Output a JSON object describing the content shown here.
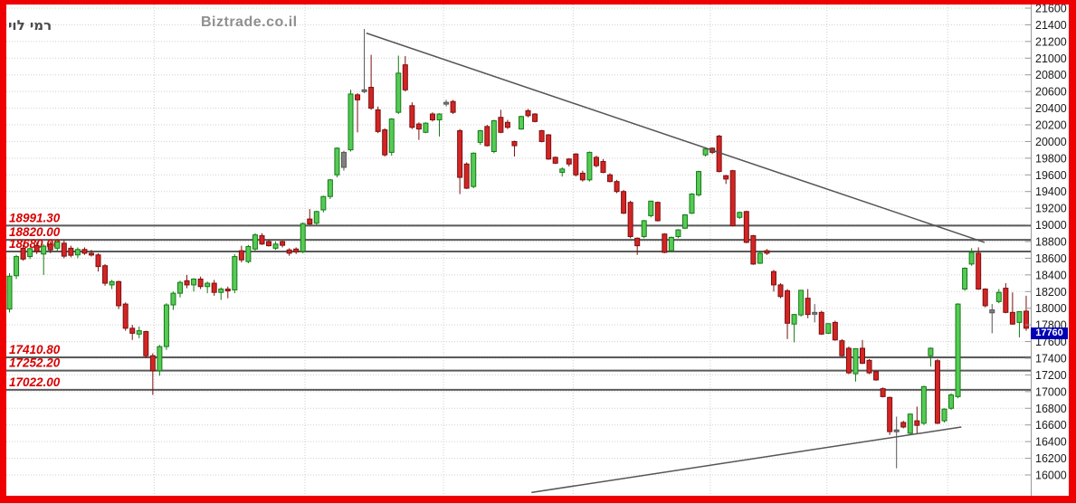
{
  "header": {
    "stock_name": "רמי לוי",
    "watermark": "Biztrade.co.il"
  },
  "colors": {
    "frame_border": "#ee0000",
    "candle_up_fill": "#55cb55",
    "candle_up_stroke": "#157a15",
    "candle_down_fill": "#d42424",
    "candle_down_stroke": "#7a1010",
    "candle_neutral": "#808080",
    "level_line": "#5a5a5a",
    "level_label": "#d80000",
    "trendline": "#555555",
    "gridline": "#cfcfcf",
    "axis_text": "#1a1a1a",
    "badge_bg": "#0000b4",
    "badge_text": "#ffffff"
  },
  "chart_data": {
    "type": "candlestick",
    "title": "רמי לוי",
    "watermark": "Biztrade.co.il",
    "x_axis_labels": [],
    "y_axis": {
      "side": "right",
      "min": 16000,
      "max": 21600,
      "step": 200
    },
    "last_price": 17760,
    "last_price_label": "17760",
    "levels": [
      {
        "label": "18991.30",
        "value": 18991.3
      },
      {
        "label": "18820.00",
        "value": 18820.0
      },
      {
        "label": "18680.00",
        "value": 18680.0
      },
      {
        "label": "17410.80",
        "value": 17410.8
      },
      {
        "label": "17252.20",
        "value": 17252.2
      },
      {
        "label": "17022.00",
        "value": 17022.0
      }
    ],
    "trendlines": [
      {
        "name": "descending-resistance",
        "i1": 52.3,
        "p1": 21300,
        "i2": 142.9,
        "p2": 18790
      },
      {
        "name": "ascending-support",
        "i1": 76.5,
        "p1": 15790,
        "i2": 139.5,
        "p2": 16575
      }
    ],
    "x_gridline_indices": [
      21.2,
      43.3,
      63.6,
      82.6,
      102.7,
      119.8,
      137.5
    ],
    "candles": [
      [
        17990,
        18420,
        17950,
        18385
      ],
      [
        18390,
        18640,
        18350,
        18620
      ],
      [
        18720,
        18760,
        18570,
        18590
      ],
      [
        18620,
        18730,
        18590,
        18715
      ],
      [
        18750,
        18790,
        18650,
        18680
      ],
      [
        18650,
        18770,
        18400,
        18745
      ],
      [
        18770,
        18800,
        18660,
        18700
      ],
      [
        18720,
        18810,
        18680,
        18795
      ],
      [
        18780,
        18820,
        18600,
        18625
      ],
      [
        18720,
        18750,
        18610,
        18635
      ],
      [
        18640,
        18730,
        18600,
        18705
      ],
      [
        18705,
        18730,
        18640,
        18660
      ],
      [
        18660,
        18700,
        18620,
        18640
      ],
      [
        18640,
        18660,
        18440,
        18500
      ],
      [
        18510,
        18530,
        18270,
        18300
      ],
      [
        18280,
        18340,
        18230,
        18320
      ],
      [
        18320,
        18330,
        17990,
        18030
      ],
      [
        18050,
        18070,
        17730,
        17760
      ],
      [
        17760,
        17800,
        17620,
        17700
      ],
      [
        17690,
        17780,
        17640,
        17730
      ],
      [
        17720,
        17730,
        17400,
        17430
      ],
      [
        17430,
        17460,
        16960,
        17250
      ],
      [
        17250,
        17560,
        17190,
        17540
      ],
      [
        17540,
        18060,
        17500,
        18040
      ],
      [
        18040,
        18200,
        17980,
        18180
      ],
      [
        18180,
        18330,
        18130,
        18310
      ],
      [
        18330,
        18400,
        18240,
        18280
      ],
      [
        18280,
        18360,
        18200,
        18350
      ],
      [
        18350,
        18380,
        18230,
        18260
      ],
      [
        18260,
        18320,
        18180,
        18300
      ],
      [
        18300,
        18340,
        18150,
        18190
      ],
      [
        18190,
        18250,
        18100,
        18230
      ],
      [
        18230,
        18260,
        18120,
        18220
      ],
      [
        18220,
        18650,
        18180,
        18620
      ],
      [
        18690,
        18750,
        18550,
        18580
      ],
      [
        18560,
        18760,
        18540,
        18740
      ],
      [
        18710,
        18900,
        18690,
        18880
      ],
      [
        18870,
        18900,
        18760,
        18770
      ],
      [
        18800,
        18820,
        18740,
        18750
      ],
      [
        18720,
        18800,
        18700,
        18770
      ],
      [
        18800,
        18810,
        18730,
        18755
      ],
      [
        18700,
        18720,
        18630,
        18660
      ],
      [
        18710,
        18730,
        18650,
        18675
      ],
      [
        18680,
        19030,
        18660,
        19015
      ],
      [
        19070,
        19190,
        19000,
        19010
      ],
      [
        19020,
        19170,
        19000,
        19160
      ],
      [
        19180,
        19350,
        19150,
        19340
      ],
      [
        19340,
        19550,
        19310,
        19540
      ],
      [
        19600,
        19930,
        19570,
        19920
      ],
      [
        19690,
        19890,
        19650,
        19870,
        "n"
      ],
      [
        19900,
        20620,
        19880,
        20570
      ],
      [
        20560,
        20580,
        20110,
        20500
      ],
      [
        20620,
        21350,
        20580,
        20620,
        "n"
      ],
      [
        20650,
        21040,
        20380,
        20400
      ],
      [
        20380,
        20420,
        20100,
        20120
      ],
      [
        20140,
        20160,
        19820,
        19840
      ],
      [
        19870,
        20280,
        19830,
        20270
      ],
      [
        20350,
        21030,
        20330,
        20820
      ],
      [
        20920,
        21025,
        20600,
        20620
      ],
      [
        20430,
        20470,
        20150,
        20170
      ],
      [
        20210,
        20230,
        20020,
        20150
      ],
      [
        20110,
        20230,
        20100,
        20220
      ],
      [
        20330,
        20350,
        20240,
        20260
      ],
      [
        20260,
        20340,
        20060,
        20330
      ],
      [
        20470,
        20500,
        20420,
        20470,
        "n"
      ],
      [
        20480,
        20500,
        20330,
        20350
      ],
      [
        20130,
        20150,
        19370,
        19570
      ],
      [
        19730,
        19750,
        19430,
        19440
      ],
      [
        19460,
        19870,
        19440,
        19860
      ],
      [
        19990,
        20140,
        19960,
        20130
      ],
      [
        20180,
        20200,
        19940,
        19950
      ],
      [
        19880,
        20260,
        19860,
        20250
      ],
      [
        20290,
        20380,
        20100,
        20110
      ],
      [
        20230,
        20260,
        20150,
        20170
      ],
      [
        20000,
        20010,
        19820,
        19950
      ],
      [
        20150,
        20310,
        20140,
        20300
      ],
      [
        20370,
        20390,
        20290,
        20310
      ],
      [
        20330,
        20340,
        20230,
        20240
      ],
      [
        20130,
        20140,
        19990,
        20000
      ],
      [
        20080,
        20090,
        19780,
        19790
      ],
      [
        19810,
        19820,
        19730,
        19740
      ],
      [
        19630,
        19690,
        19580,
        19670
      ],
      [
        19790,
        19800,
        19700,
        19730
      ],
      [
        19850,
        19860,
        19580,
        19600
      ],
      [
        19620,
        19650,
        19520,
        19540
      ],
      [
        19540,
        19880,
        19520,
        19870
      ],
      [
        19810,
        19830,
        19690,
        19710
      ],
      [
        19760,
        19790,
        19620,
        19630
      ],
      [
        19600,
        19620,
        19510,
        19520
      ],
      [
        19520,
        19540,
        19380,
        19400
      ],
      [
        19400,
        19420,
        19130,
        19140
      ],
      [
        19270,
        19290,
        18840,
        18860
      ],
      [
        18840,
        18850,
        18640,
        18750
      ],
      [
        18860,
        19060,
        18840,
        19050
      ],
      [
        19110,
        19290,
        19090,
        19285
      ],
      [
        19270,
        19280,
        19040,
        19050
      ],
      [
        18890,
        18900,
        18660,
        18670
      ],
      [
        18690,
        18860,
        18670,
        18850
      ],
      [
        18860,
        18950,
        18840,
        18940
      ],
      [
        18960,
        19130,
        18950,
        19120
      ],
      [
        19140,
        19380,
        19130,
        19370
      ],
      [
        19360,
        19650,
        19340,
        19640
      ],
      [
        19840,
        19920,
        19820,
        19910
      ],
      [
        19920,
        19930,
        19850,
        19870
      ],
      [
        20065,
        20080,
        19630,
        19640
      ],
      [
        19590,
        19600,
        19490,
        19550
      ],
      [
        19650,
        19660,
        18980,
        18990
      ],
      [
        19090,
        19160,
        19070,
        19150
      ],
      [
        19160,
        19170,
        18780,
        18790
      ],
      [
        18870,
        18880,
        18520,
        18530
      ],
      [
        18540,
        18690,
        18530,
        18660
      ],
      [
        18690,
        18710,
        18640,
        18660
      ],
      [
        18440,
        18460,
        18200,
        18280
      ],
      [
        18280,
        18300,
        18120,
        18140
      ],
      [
        18210,
        18230,
        17630,
        17820
      ],
      [
        17810,
        17930,
        17590,
        17925
      ],
      [
        17920,
        18220,
        17900,
        18215
      ],
      [
        18120,
        18230,
        17880,
        17925
      ],
      [
        17950,
        18050,
        17830,
        17945,
        "n"
      ],
      [
        17950,
        17970,
        17680,
        17690
      ],
      [
        17700,
        17820,
        17690,
        17815
      ],
      [
        17830,
        17850,
        17610,
        17620
      ],
      [
        17610,
        17630,
        17420,
        17430
      ],
      [
        17520,
        17540,
        17210,
        17225
      ],
      [
        17215,
        17520,
        17120,
        17515
      ],
      [
        17520,
        17620,
        17330,
        17340
      ],
      [
        17375,
        17390,
        17210,
        17225
      ],
      [
        17240,
        17250,
        17130,
        17140
      ],
      [
        17035,
        17050,
        16930,
        16940
      ],
      [
        16930,
        16940,
        16480,
        16520
      ],
      [
        16540,
        16700,
        16080,
        16540,
        "n"
      ],
      [
        16630,
        16650,
        16560,
        16575
      ],
      [
        16500,
        16740,
        16490,
        16730
      ],
      [
        16650,
        16820,
        16490,
        16595
      ],
      [
        16620,
        17070,
        16600,
        17060
      ],
      [
        17430,
        17530,
        17300,
        17520
      ],
      [
        17370,
        17390,
        16610,
        16620
      ],
      [
        16650,
        16800,
        16630,
        16790
      ],
      [
        16800,
        16980,
        16780,
        16960
      ],
      [
        16940,
        18060,
        16920,
        18050
      ],
      [
        18230,
        18490,
        18210,
        18480
      ],
      [
        18530,
        18720,
        18510,
        18670
      ],
      [
        18660,
        18730,
        18220,
        18230
      ],
      [
        18230,
        18240,
        18010,
        18030
      ],
      [
        17980,
        18050,
        17700,
        17945,
        "n"
      ],
      [
        18080,
        18230,
        18060,
        18190
      ],
      [
        18240,
        18300,
        17940,
        17950
      ],
      [
        17950,
        18190,
        17800,
        17810
      ],
      [
        17830,
        17960,
        17650,
        17960
      ],
      [
        17965,
        18150,
        17730,
        17760
      ]
    ]
  }
}
